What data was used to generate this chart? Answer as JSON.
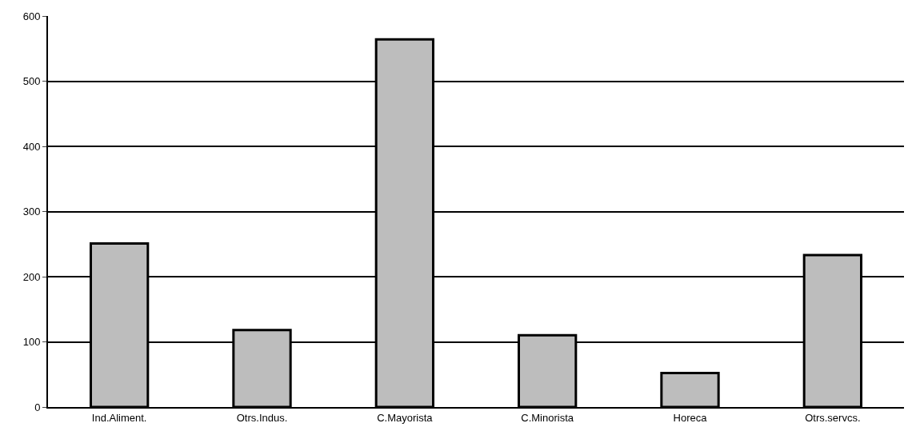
{
  "chart_data": {
    "type": "bar",
    "categories": [
      "Ind.Aliment.",
      "Otrs.Indus.",
      "C.Mayorista",
      "C.Minorista",
      "Horeca",
      "Otrs.servcs."
    ],
    "values": [
      251,
      118,
      564,
      110,
      52,
      233
    ],
    "color": "#bdbdbd",
    "ylim": [
      0,
      600
    ],
    "yticks": [
      0,
      100,
      200,
      300,
      400,
      500,
      600
    ],
    "grid": "y",
    "legend": false
  }
}
